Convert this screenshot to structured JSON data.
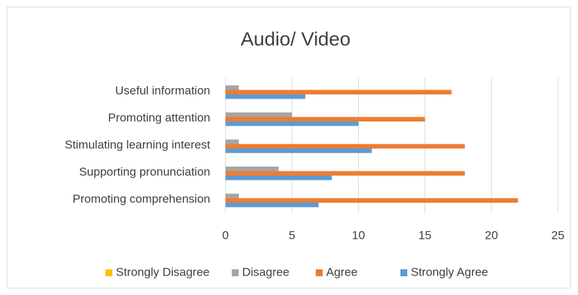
{
  "chart_data": {
    "type": "bar",
    "orientation": "horizontal",
    "title": "Audio/ Video",
    "categories": [
      "Useful information",
      "Promoting attention",
      "Stimulating learning interest",
      "Supporting pronunciation",
      "Promoting comprehension"
    ],
    "series": [
      {
        "name": "Strongly Disagree",
        "color": "#ffc000",
        "values": [
          0,
          0,
          0,
          0,
          0
        ]
      },
      {
        "name": "Disagree",
        "color": "#a5a5a5",
        "values": [
          1,
          5,
          1,
          4,
          1
        ]
      },
      {
        "name": "Agree",
        "color": "#ed7d31",
        "values": [
          17,
          15,
          18,
          18,
          22
        ]
      },
      {
        "name": "Strongly Agree",
        "color": "#5b9bd5",
        "values": [
          6,
          10,
          11,
          8,
          7
        ]
      }
    ],
    "xlim": [
      0,
      25
    ],
    "xticks": [
      0,
      5,
      10,
      15,
      20,
      25
    ],
    "grid": true,
    "legend": "bottom"
  }
}
